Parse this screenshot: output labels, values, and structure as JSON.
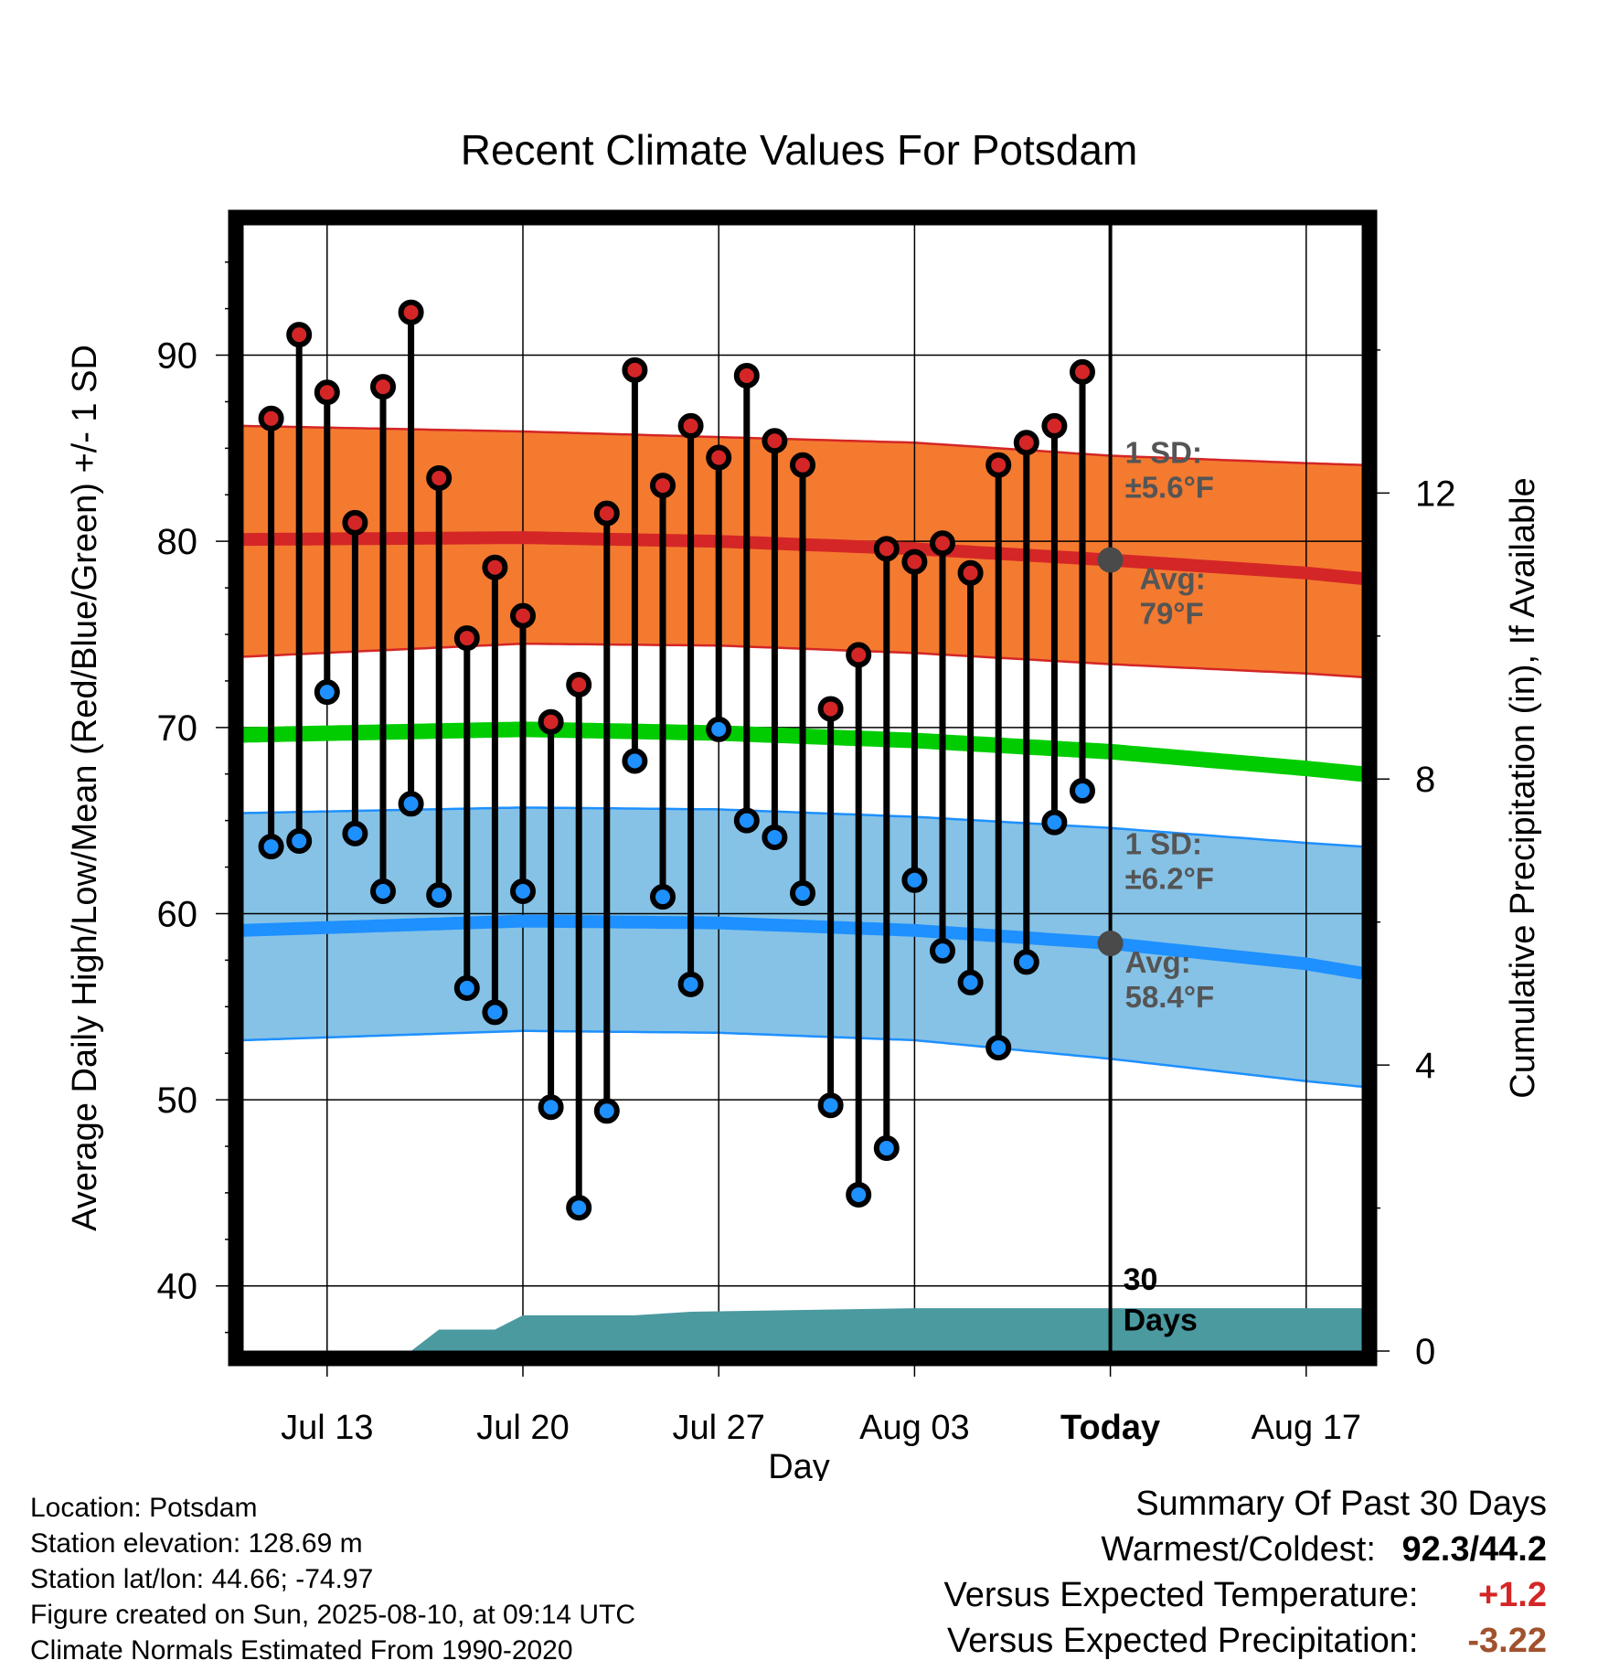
{
  "chart_data": {
    "type": "line",
    "title": "Recent Climate Values For Potsdam",
    "xlabel": "Day",
    "ylabel": "Average Daily High/Low/Mean (Red/Blue/Green) +/- 1 SD",
    "y2label": "Cumulative Precipitation (in), If Available",
    "ylim": [
      36.5,
      97
    ],
    "y2lim": [
      0,
      15.75
    ],
    "yticks": [
      40,
      50,
      60,
      70,
      80,
      90
    ],
    "y2ticks": [
      0,
      4,
      8,
      12
    ],
    "xticks": [
      {
        "date": "2025-07-13",
        "label": "Jul 13"
      },
      {
        "date": "2025-07-20",
        "label": "Jul 20"
      },
      {
        "date": "2025-07-27",
        "label": "Jul 27"
      },
      {
        "date": "2025-08-03",
        "label": "Aug 03"
      },
      {
        "date": "2025-08-10",
        "label": "Today"
      },
      {
        "date": "2025-08-17",
        "label": "Aug 17"
      }
    ],
    "xlim": [
      "2025-07-10",
      "2025-08-19"
    ],
    "grid": true,
    "colors": {
      "high_band": "#f47a30",
      "high_avg": "#d42626",
      "low_band": "#86c2e6",
      "low_avg": "#1e90ff",
      "mean": "#00cc00",
      "precip": "#4a9aa0",
      "high_dot": "#d42626",
      "low_dot": "#1e90ff",
      "positive": "#d42626",
      "negative": "#a0522d"
    },
    "days": [
      {
        "date": "2025-07-11",
        "high": 86.6,
        "low": 63.6
      },
      {
        "date": "2025-07-12",
        "high": 91.1,
        "low": 63.9
      },
      {
        "date": "2025-07-13",
        "high": 88.0,
        "low": 71.9
      },
      {
        "date": "2025-07-14",
        "high": 81.0,
        "low": 64.3
      },
      {
        "date": "2025-07-15",
        "high": 88.3,
        "low": 61.2
      },
      {
        "date": "2025-07-16",
        "high": 92.3,
        "low": 65.9
      },
      {
        "date": "2025-07-17",
        "high": 83.4,
        "low": 61.0
      },
      {
        "date": "2025-07-18",
        "high": 74.8,
        "low": 56.0
      },
      {
        "date": "2025-07-19",
        "high": 78.6,
        "low": 54.7
      },
      {
        "date": "2025-07-20",
        "high": 76.0,
        "low": 61.2
      },
      {
        "date": "2025-07-21",
        "high": 70.3,
        "low": 49.6
      },
      {
        "date": "2025-07-22",
        "high": 72.3,
        "low": 44.2
      },
      {
        "date": "2025-07-23",
        "high": 81.5,
        "low": 49.4
      },
      {
        "date": "2025-07-24",
        "high": 89.2,
        "low": 68.2
      },
      {
        "date": "2025-07-25",
        "high": 83.0,
        "low": 60.9
      },
      {
        "date": "2025-07-26",
        "high": 86.2,
        "low": 56.2
      },
      {
        "date": "2025-07-27",
        "high": 84.5,
        "low": 69.9
      },
      {
        "date": "2025-07-28",
        "high": 88.9,
        "low": 65.0
      },
      {
        "date": "2025-07-29",
        "high": 85.4,
        "low": 64.1
      },
      {
        "date": "2025-07-30",
        "high": 84.1,
        "low": 61.1
      },
      {
        "date": "2025-07-31",
        "high": 71.0,
        "low": 49.7
      },
      {
        "date": "2025-08-01",
        "high": 73.9,
        "low": 44.9
      },
      {
        "date": "2025-08-02",
        "high": 79.6,
        "low": 47.4
      },
      {
        "date": "2025-08-03",
        "high": 78.9,
        "low": 61.8
      },
      {
        "date": "2025-08-04",
        "high": 79.9,
        "low": 58.0
      },
      {
        "date": "2025-08-05",
        "high": 78.3,
        "low": 56.3
      },
      {
        "date": "2025-08-06",
        "high": 84.1,
        "low": 52.8
      },
      {
        "date": "2025-08-07",
        "high": 85.3,
        "low": 57.4
      },
      {
        "date": "2025-08-08",
        "high": 86.2,
        "low": 64.9
      },
      {
        "date": "2025-08-09",
        "high": 89.1,
        "low": 66.6
      }
    ],
    "normals": [
      {
        "date": "2025-07-10",
        "high_avg": 80.1,
        "high_sd_low": 73.8,
        "high_sd_high": 86.2,
        "low_avg": 59.1,
        "low_sd_low": 53.2,
        "low_sd_high": 65.4,
        "mean": 69.6
      },
      {
        "date": "2025-07-20",
        "high_avg": 80.2,
        "high_sd_low": 74.5,
        "high_sd_high": 85.9,
        "low_avg": 59.6,
        "low_sd_low": 53.7,
        "low_sd_high": 65.7,
        "mean": 69.9
      },
      {
        "date": "2025-07-27",
        "high_avg": 80.0,
        "high_sd_low": 74.4,
        "high_sd_high": 85.6,
        "low_avg": 59.5,
        "low_sd_low": 53.6,
        "low_sd_high": 65.6,
        "mean": 69.7
      },
      {
        "date": "2025-08-03",
        "high_avg": 79.6,
        "high_sd_low": 74.0,
        "high_sd_high": 85.3,
        "low_avg": 59.1,
        "low_sd_low": 53.2,
        "low_sd_high": 65.2,
        "mean": 69.3
      },
      {
        "date": "2025-08-10",
        "high_avg": 79.0,
        "high_sd_low": 73.4,
        "high_sd_high": 84.6,
        "low_avg": 58.4,
        "low_sd_low": 52.2,
        "low_sd_high": 64.6,
        "mean": 68.7
      },
      {
        "date": "2025-08-17",
        "high_avg": 78.3,
        "high_sd_low": 72.9,
        "high_sd_high": 84.2,
        "low_avg": 57.3,
        "low_sd_low": 51.0,
        "low_sd_high": 63.8,
        "mean": 67.8
      },
      {
        "date": "2025-08-19",
        "high_avg": 78.0,
        "high_sd_low": 72.7,
        "high_sd_high": 84.1,
        "low_avg": 56.8,
        "low_sd_low": 50.7,
        "low_sd_high": 63.6,
        "mean": 67.5
      }
    ],
    "precip_cumulative": [
      {
        "date": "2025-07-16",
        "value": 0.0
      },
      {
        "date": "2025-07-17",
        "value": 0.3
      },
      {
        "date": "2025-07-19",
        "value": 0.3
      },
      {
        "date": "2025-07-20",
        "value": 0.5
      },
      {
        "date": "2025-07-24",
        "value": 0.5
      },
      {
        "date": "2025-07-26",
        "value": 0.55
      },
      {
        "date": "2025-08-03",
        "value": 0.6
      },
      {
        "date": "2025-08-19",
        "value": 0.6
      }
    ],
    "today": "2025-08-10",
    "annotations": {
      "high_sd_line1": "1 SD:",
      "high_sd_line2": "±5.6°F",
      "high_avg_line1": "Avg:",
      "high_avg_line2": "79°F",
      "high_avg_value": 79,
      "low_sd_line1": "1 SD:",
      "low_sd_line2": "±6.2°F",
      "low_avg_line1": "Avg:",
      "low_avg_line2": "58.4°F",
      "low_avg_value": 58.4,
      "days_line1": "30",
      "days_line2": "Days"
    }
  },
  "footer": {
    "location": "Location: Potsdam",
    "elevation": "Station elevation: 128.69 m",
    "latlon": "Station lat/lon: 44.66; -74.97",
    "created": "Figure created on Sun, 2025-08-10, at 09:14 UTC",
    "normals": "Climate Normals Estimated From 1990-2020"
  },
  "summary": {
    "title": "Summary Of Past 30 Days",
    "warm_cold_label": "Warmest/Coldest:",
    "warm_value": "92.3",
    "cold_value": "44.2",
    "temp_label": "Versus Expected Temperature:",
    "temp_value": "+1.2",
    "precip_label": "Versus Expected Precipitation:",
    "precip_value": "-3.22"
  }
}
